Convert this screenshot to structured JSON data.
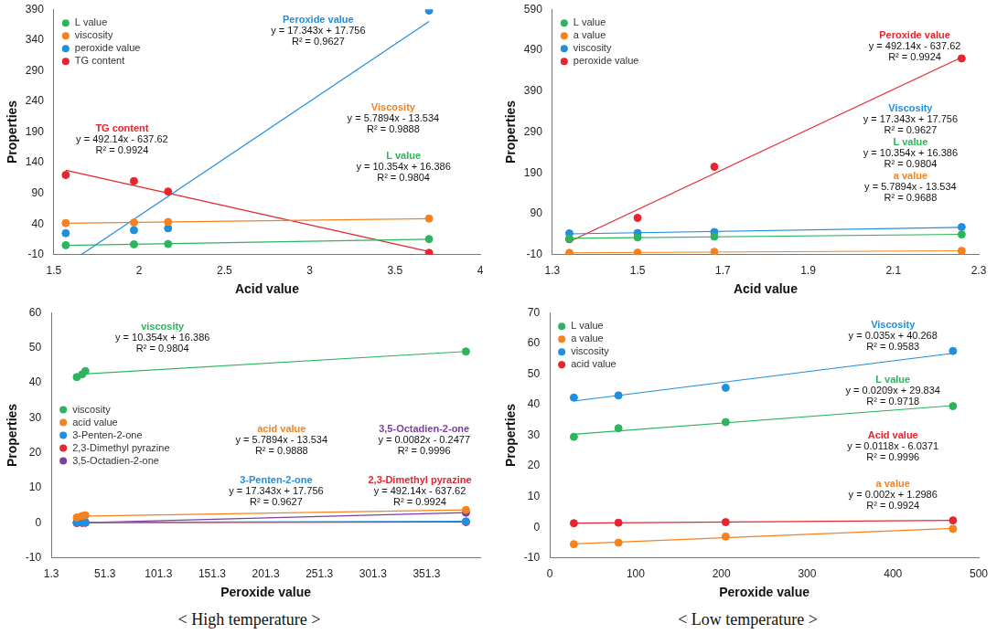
{
  "chart_data": [
    {
      "type": "regression",
      "xlabel": "Acid value",
      "ylabel": "Properties",
      "x": [
        1.57,
        1.97,
        2.17,
        3.7
      ],
      "xlim": [
        1.5,
        4
      ],
      "xticks": [
        1.5,
        2,
        2.5,
        3,
        3.5,
        4
      ],
      "ylim": [
        -10,
        390
      ],
      "yticks": [
        -10,
        40,
        90,
        140,
        190,
        240,
        290,
        340,
        390
      ],
      "grid": false,
      "legend": "upper left",
      "marker": "circle",
      "series": [
        {
          "name": "L value",
          "color": "#2db55d",
          "values": [
            5.5,
            6.9,
            7.4,
            15.5
          ],
          "annotation": {
            "title": "L value",
            "text": [
              "y = 10.354x + 16.386",
              "R² = 0.9804"
            ],
            "x": 3.55,
            "y": 150
          }
        },
        {
          "name": "viscosity",
          "color": "#f5821f",
          "values": [
            41.6,
            42.4,
            43.3,
            48.9
          ],
          "annotation": {
            "title": "Viscosity",
            "text": [
              "y = 5.7894x - 13.534",
              "R² = 0.9888"
            ],
            "x": 3.49,
            "y": 230
          }
        },
        {
          "name": "peroxide value",
          "color": "#1f8fe0",
          "values": [
            25,
            30,
            33,
            388
          ],
          "annotation": {
            "title": "Peroxide value",
            "text": [
              "y = 17.343x + 17.756",
              "R² = 0.9627"
            ],
            "x": 3.05,
            "y": 372
          }
        },
        {
          "name": "TG content",
          "color": "#e6262e",
          "values": [
            120,
            110,
            93,
            -7
          ],
          "annotation": {
            "title": "TG content",
            "text": [
              "y = 492.14x - 637.62",
              "R² = 0.9924"
            ],
            "x": 1.9,
            "y": 195
          }
        }
      ]
    },
    {
      "type": "regression",
      "xlabel": "Acid value",
      "ylabel": "Properties",
      "x": [
        1.34,
        1.5,
        1.68,
        2.26
      ],
      "xlim": [
        1.3,
        2.3
      ],
      "xticks": [
        1.3,
        1.5,
        1.7,
        1.9,
        2.1,
        2.3
      ],
      "ylim": [
        -10,
        590
      ],
      "yticks": [
        -10,
        90,
        190,
        290,
        390,
        490,
        590
      ],
      "grid": false,
      "legend": "upper left",
      "marker": "circle",
      "series": [
        {
          "name": "L value",
          "color": "#2db55d",
          "values": [
            29.5,
            32.3,
            34.3,
            39.5
          ],
          "annotation": {
            "title": "L value",
            "text": [
              "y = 10.354x + 16.386",
              "R² = 0.9804"
            ],
            "x": 2.14,
            "y": 264
          }
        },
        {
          "name": "a value",
          "color": "#f5821f",
          "values": [
            -5.5,
            -5,
            -3,
            -0.5
          ],
          "annotation": {
            "title": "a value",
            "text": [
              "y = 5.7894x - 13.534",
              "R² = 0.9688"
            ],
            "x": 2.14,
            "y": 182
          }
        },
        {
          "name": "viscosity",
          "color": "#1f8fe0",
          "values": [
            42.3,
            43,
            45.5,
            57.5
          ],
          "annotation": {
            "title": "Viscosity",
            "text": [
              "y = 17.343x + 17.756",
              "R² = 0.9627"
            ],
            "x": 2.14,
            "y": 348
          }
        },
        {
          "name": "peroxide value",
          "color": "#e6262e",
          "values": [
            28,
            80,
            205,
            470
          ],
          "annotation": {
            "title": "Peroxide value",
            "text": [
              "y = 492.14x - 637.62",
              "R² = 0.9924"
            ],
            "x": 2.15,
            "y": 525
          }
        }
      ]
    },
    {
      "type": "regression",
      "xlabel": "Peroxide value",
      "ylabel": "Properties",
      "x": [
        25,
        30,
        33,
        388
      ],
      "xlim": [
        1.3,
        401.3
      ],
      "xticks": [
        1.3,
        51.3,
        101.3,
        151.3,
        201.3,
        251.3,
        301.3,
        351.3
      ],
      "ylim": [
        -10,
        60
      ],
      "yticks": [
        -10,
        0,
        10,
        20,
        30,
        40,
        50,
        60
      ],
      "grid": false,
      "legend": "center left",
      "marker": "circle",
      "series": [
        {
          "name": "viscosity",
          "color": "#2db55d",
          "values": [
            41.6,
            42.4,
            43.3,
            48.9
          ],
          "annotation": {
            "title": "viscosity",
            "text": [
              "y = 10.354x + 16.386",
              "R² = 0.9804"
            ],
            "x": 105,
            "y": 56
          }
        },
        {
          "name": "acid value",
          "color": "#f5821f",
          "values": [
            1.57,
            1.97,
            2.17,
            3.7
          ],
          "annotation": {
            "title": "acid value",
            "text": [
              "y = 5.7894x - 13.534",
              "R² = 0.9888"
            ],
            "x": 216,
            "y": 26.7
          }
        },
        {
          "name": "3-Penten-2-one",
          "color": "#1f8fe0",
          "values": [
            0.12,
            0.15,
            0.18,
            0.45
          ],
          "annotation": {
            "title": "3-Penten-2-one",
            "text": [
              "y = 17.343x + 17.756",
              "R² = 0.9627"
            ],
            "x": 211,
            "y": 12
          }
        },
        {
          "name": "2,3-Dimethyl pyrazine",
          "color": "#e6262e",
          "values": [
            0.05,
            0.06,
            0.08,
            0.25
          ],
          "annotation": {
            "title": "2,3-Dimethyl pyrazine",
            "text": [
              "y = 492.14x - 637.62",
              "R² = 0.9924"
            ],
            "x": 345,
            "y": 12
          }
        },
        {
          "name": "3,5-Octadien-2-one",
          "color": "#7b3fa0",
          "values": [
            0,
            0.03,
            0.05,
            2.93
          ],
          "annotation": {
            "title": "3,5-Octadien-2-one",
            "text": [
              "y = 0.0082x - 0.2477",
              "R² = 0.9996"
            ],
            "x": 349,
            "y": 26.7
          }
        }
      ]
    },
    {
      "type": "regression",
      "xlabel": "Peroxide value",
      "ylabel": "Properties",
      "x": [
        28,
        80,
        205,
        470
      ],
      "xlim": [
        0,
        500
      ],
      "xticks": [
        0,
        100,
        200,
        300,
        400,
        500
      ],
      "ylim": [
        -10,
        70
      ],
      "yticks": [
        -10,
        0,
        10,
        20,
        30,
        40,
        50,
        60,
        70
      ],
      "grid": false,
      "legend": "upper left",
      "marker": "circle",
      "series": [
        {
          "name": "L value",
          "color": "#2db55d",
          "values": [
            29.5,
            32.3,
            34.3,
            39.5
          ],
          "annotation": {
            "title": "L value",
            "text": [
              "y = 0.0209x + 29.834",
              "R² = 0.9718"
            ],
            "x": 400,
            "y": 48
          }
        },
        {
          "name": "a value",
          "color": "#f5821f",
          "values": [
            -5.5,
            -5,
            -3,
            -0.5
          ],
          "annotation": {
            "title": "a value",
            "text": [
              "y = 0.002x + 1.2986",
              "R² = 0.9924"
            ],
            "x": 400,
            "y": 14
          }
        },
        {
          "name": "viscosity",
          "color": "#1f8fe0",
          "values": [
            42.3,
            43,
            45.5,
            57.5
          ],
          "annotation": {
            "title": "Viscosity",
            "text": [
              "y = 0.035x + 40.268",
              "R² = 0.9583"
            ],
            "x": 400,
            "y": 66
          }
        },
        {
          "name": "acid value",
          "color": "#e6262e",
          "values": [
            1.34,
            1.5,
            1.68,
            2.26
          ],
          "annotation": {
            "title": "Acid value",
            "text": [
              "y = 0.0118x - 6.0371",
              "R² = 0.9996"
            ],
            "x": 400,
            "y": 30
          }
        }
      ]
    }
  ],
  "captions": [
    "< High temperature >",
    "< Low temperature >"
  ]
}
